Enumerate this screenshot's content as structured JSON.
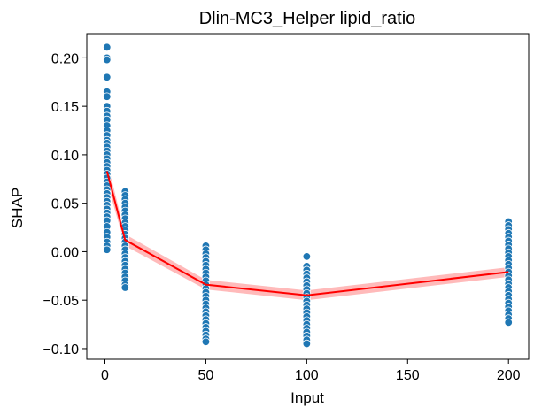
{
  "chart_data": {
    "type": "scatter",
    "title": "Dlin-MC3_Helper lipid_ratio",
    "xlabel": "Input",
    "ylabel": "SHAP",
    "xlim": [
      -9,
      210
    ],
    "ylim": [
      -0.111,
      0.225
    ],
    "xticks": [
      0,
      50,
      100,
      150,
      200
    ],
    "xtick_labels": [
      "0",
      "50",
      "100",
      "150",
      "200"
    ],
    "yticks": [
      -0.1,
      -0.05,
      0.0,
      0.05,
      0.1,
      0.15,
      0.2
    ],
    "ytick_labels": [
      "−0.10",
      "−0.05",
      "0.00",
      "0.05",
      "0.10",
      "0.15",
      "0.20"
    ],
    "grid": false,
    "legend": "none",
    "colors": {
      "points": "#1f77b4",
      "trend": "#ff0000",
      "band": "#ffb3b3"
    },
    "series": [
      {
        "kind": "scatter",
        "groups": [
          {
            "x": 1,
            "y": [
              0.211,
              0.2,
              0.198,
              0.18,
              0.165,
              0.16,
              0.15,
              0.145,
              0.14,
              0.136,
              0.13,
              0.125,
              0.12,
              0.115,
              0.112,
              0.108,
              0.104,
              0.1,
              0.096,
              0.092,
              0.088,
              0.084,
              0.08,
              0.076,
              0.072,
              0.068,
              0.064,
              0.06,
              0.056,
              0.052,
              0.048,
              0.044,
              0.04,
              0.036,
              0.032,
              0.026,
              0.02,
              0.015,
              0.01,
              0.006,
              0.002
            ]
          },
          {
            "x": 10,
            "y": [
              0.062,
              0.058,
              0.054,
              0.05,
              0.046,
              0.042,
              0.038,
              0.034,
              0.03,
              0.026,
              0.022,
              0.018,
              0.014,
              0.01,
              0.006,
              0.002,
              -0.002,
              -0.006,
              -0.01,
              -0.014,
              -0.018,
              -0.022,
              -0.026,
              -0.03,
              -0.034,
              -0.037
            ]
          },
          {
            "x": 50,
            "y": [
              0.006,
              0.002,
              -0.002,
              -0.006,
              -0.01,
              -0.014,
              -0.018,
              -0.022,
              -0.026,
              -0.03,
              -0.034,
              -0.038,
              -0.042,
              -0.046,
              -0.05,
              -0.054,
              -0.058,
              -0.062,
              -0.066,
              -0.07,
              -0.074,
              -0.078,
              -0.082,
              -0.086,
              -0.09,
              -0.093
            ]
          },
          {
            "x": 100,
            "y": [
              -0.005,
              -0.015,
              -0.019,
              -0.023,
              -0.027,
              -0.031,
              -0.035,
              -0.039,
              -0.043,
              -0.047,
              -0.051,
              -0.055,
              -0.059,
              -0.063,
              -0.067,
              -0.071,
              -0.075,
              -0.079,
              -0.083,
              -0.087,
              -0.091,
              -0.095
            ]
          },
          {
            "x": 200,
            "y": [
              0.031,
              0.027,
              0.023,
              0.019,
              0.015,
              0.011,
              0.007,
              0.003,
              -0.001,
              -0.005,
              -0.009,
              -0.013,
              -0.017,
              -0.021,
              -0.025,
              -0.029,
              -0.033,
              -0.037,
              -0.041,
              -0.045,
              -0.049,
              -0.053,
              -0.057,
              -0.061,
              -0.065,
              -0.069,
              -0.073
            ]
          }
        ]
      },
      {
        "kind": "line",
        "x": [
          1,
          10,
          50,
          100,
          200
        ],
        "y": [
          0.083,
          0.012,
          -0.034,
          -0.045,
          -0.021
        ],
        "band_low": [
          0.072,
          0.006,
          -0.039,
          -0.05,
          -0.026
        ],
        "band_high": [
          0.094,
          0.018,
          -0.029,
          -0.04,
          -0.016
        ]
      }
    ]
  }
}
